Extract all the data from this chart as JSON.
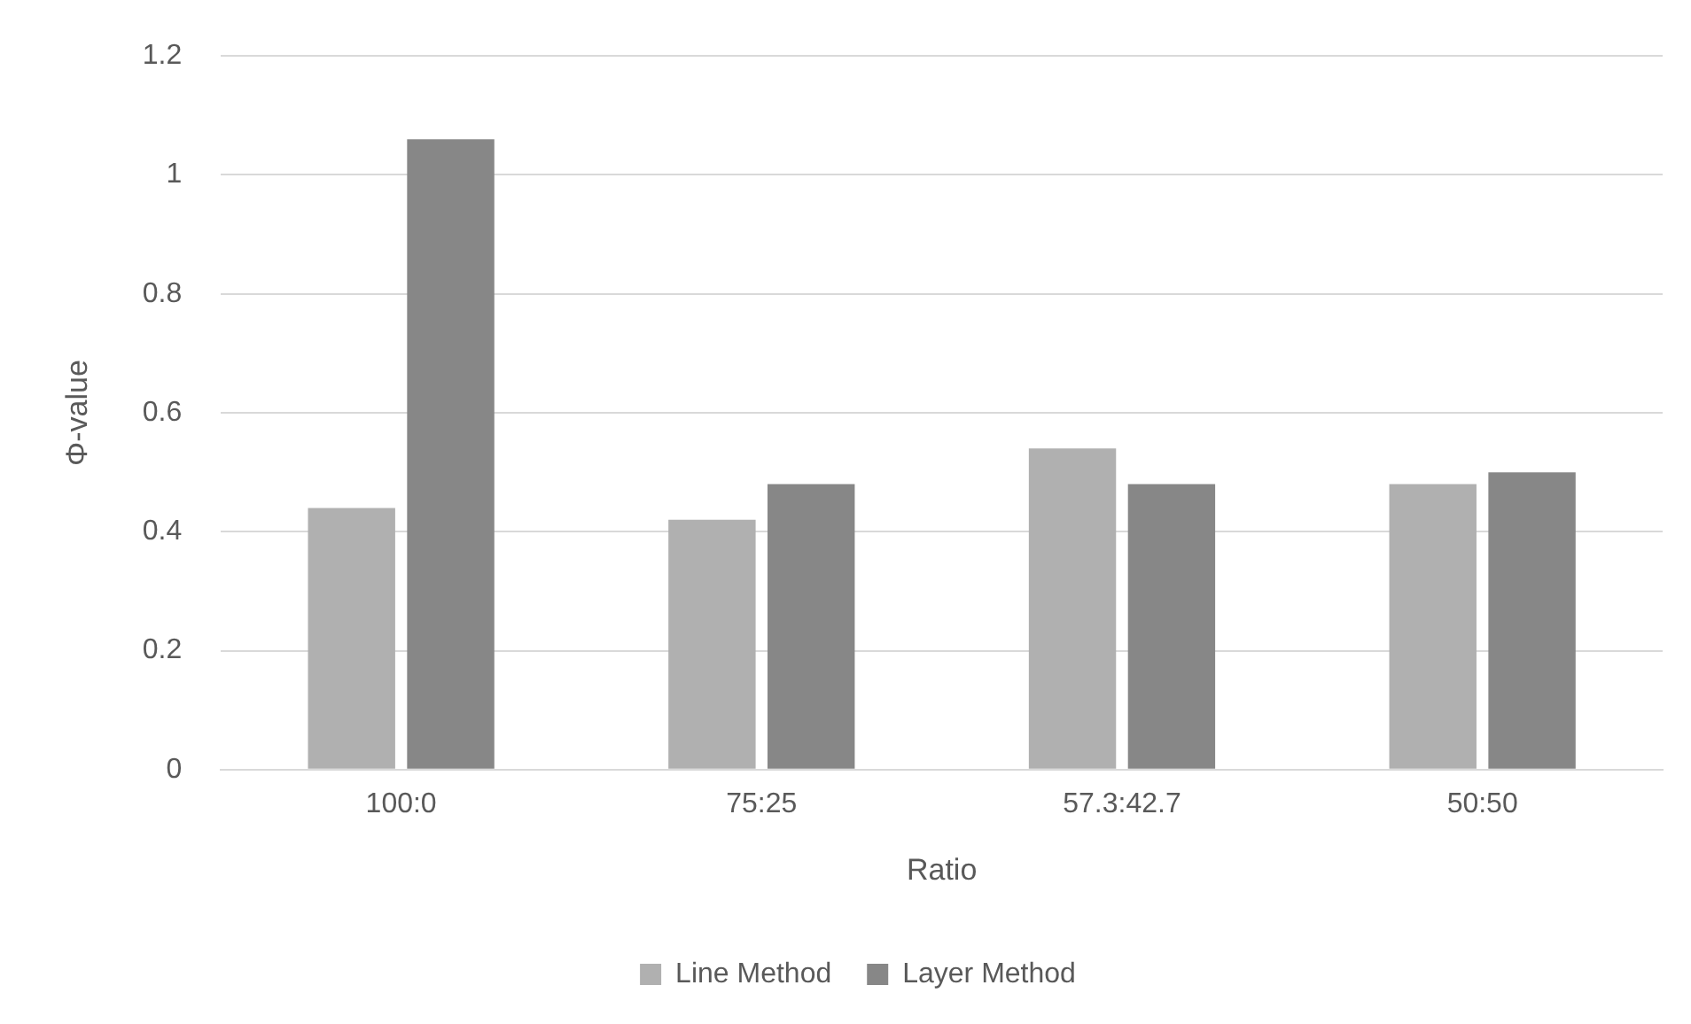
{
  "chart_data": {
    "type": "bar",
    "xlabel": "Ratio",
    "ylabel": "Φ-value",
    "categories": [
      "100:0",
      "75:25",
      "57.3:42.7",
      "50:50"
    ],
    "series": [
      {
        "name": "Line Method",
        "color": "#b0b0b0",
        "values": [
          0.44,
          0.42,
          0.54,
          0.48
        ]
      },
      {
        "name": "Layer Method",
        "color": "#878787",
        "values": [
          1.06,
          0.48,
          0.48,
          0.5
        ]
      }
    ],
    "ylim": [
      0,
      1.2
    ],
    "yticks": [
      0,
      0.2,
      0.4,
      0.6,
      0.8,
      1,
      1.2
    ],
    "grid": "y",
    "legend": "bottom"
  }
}
